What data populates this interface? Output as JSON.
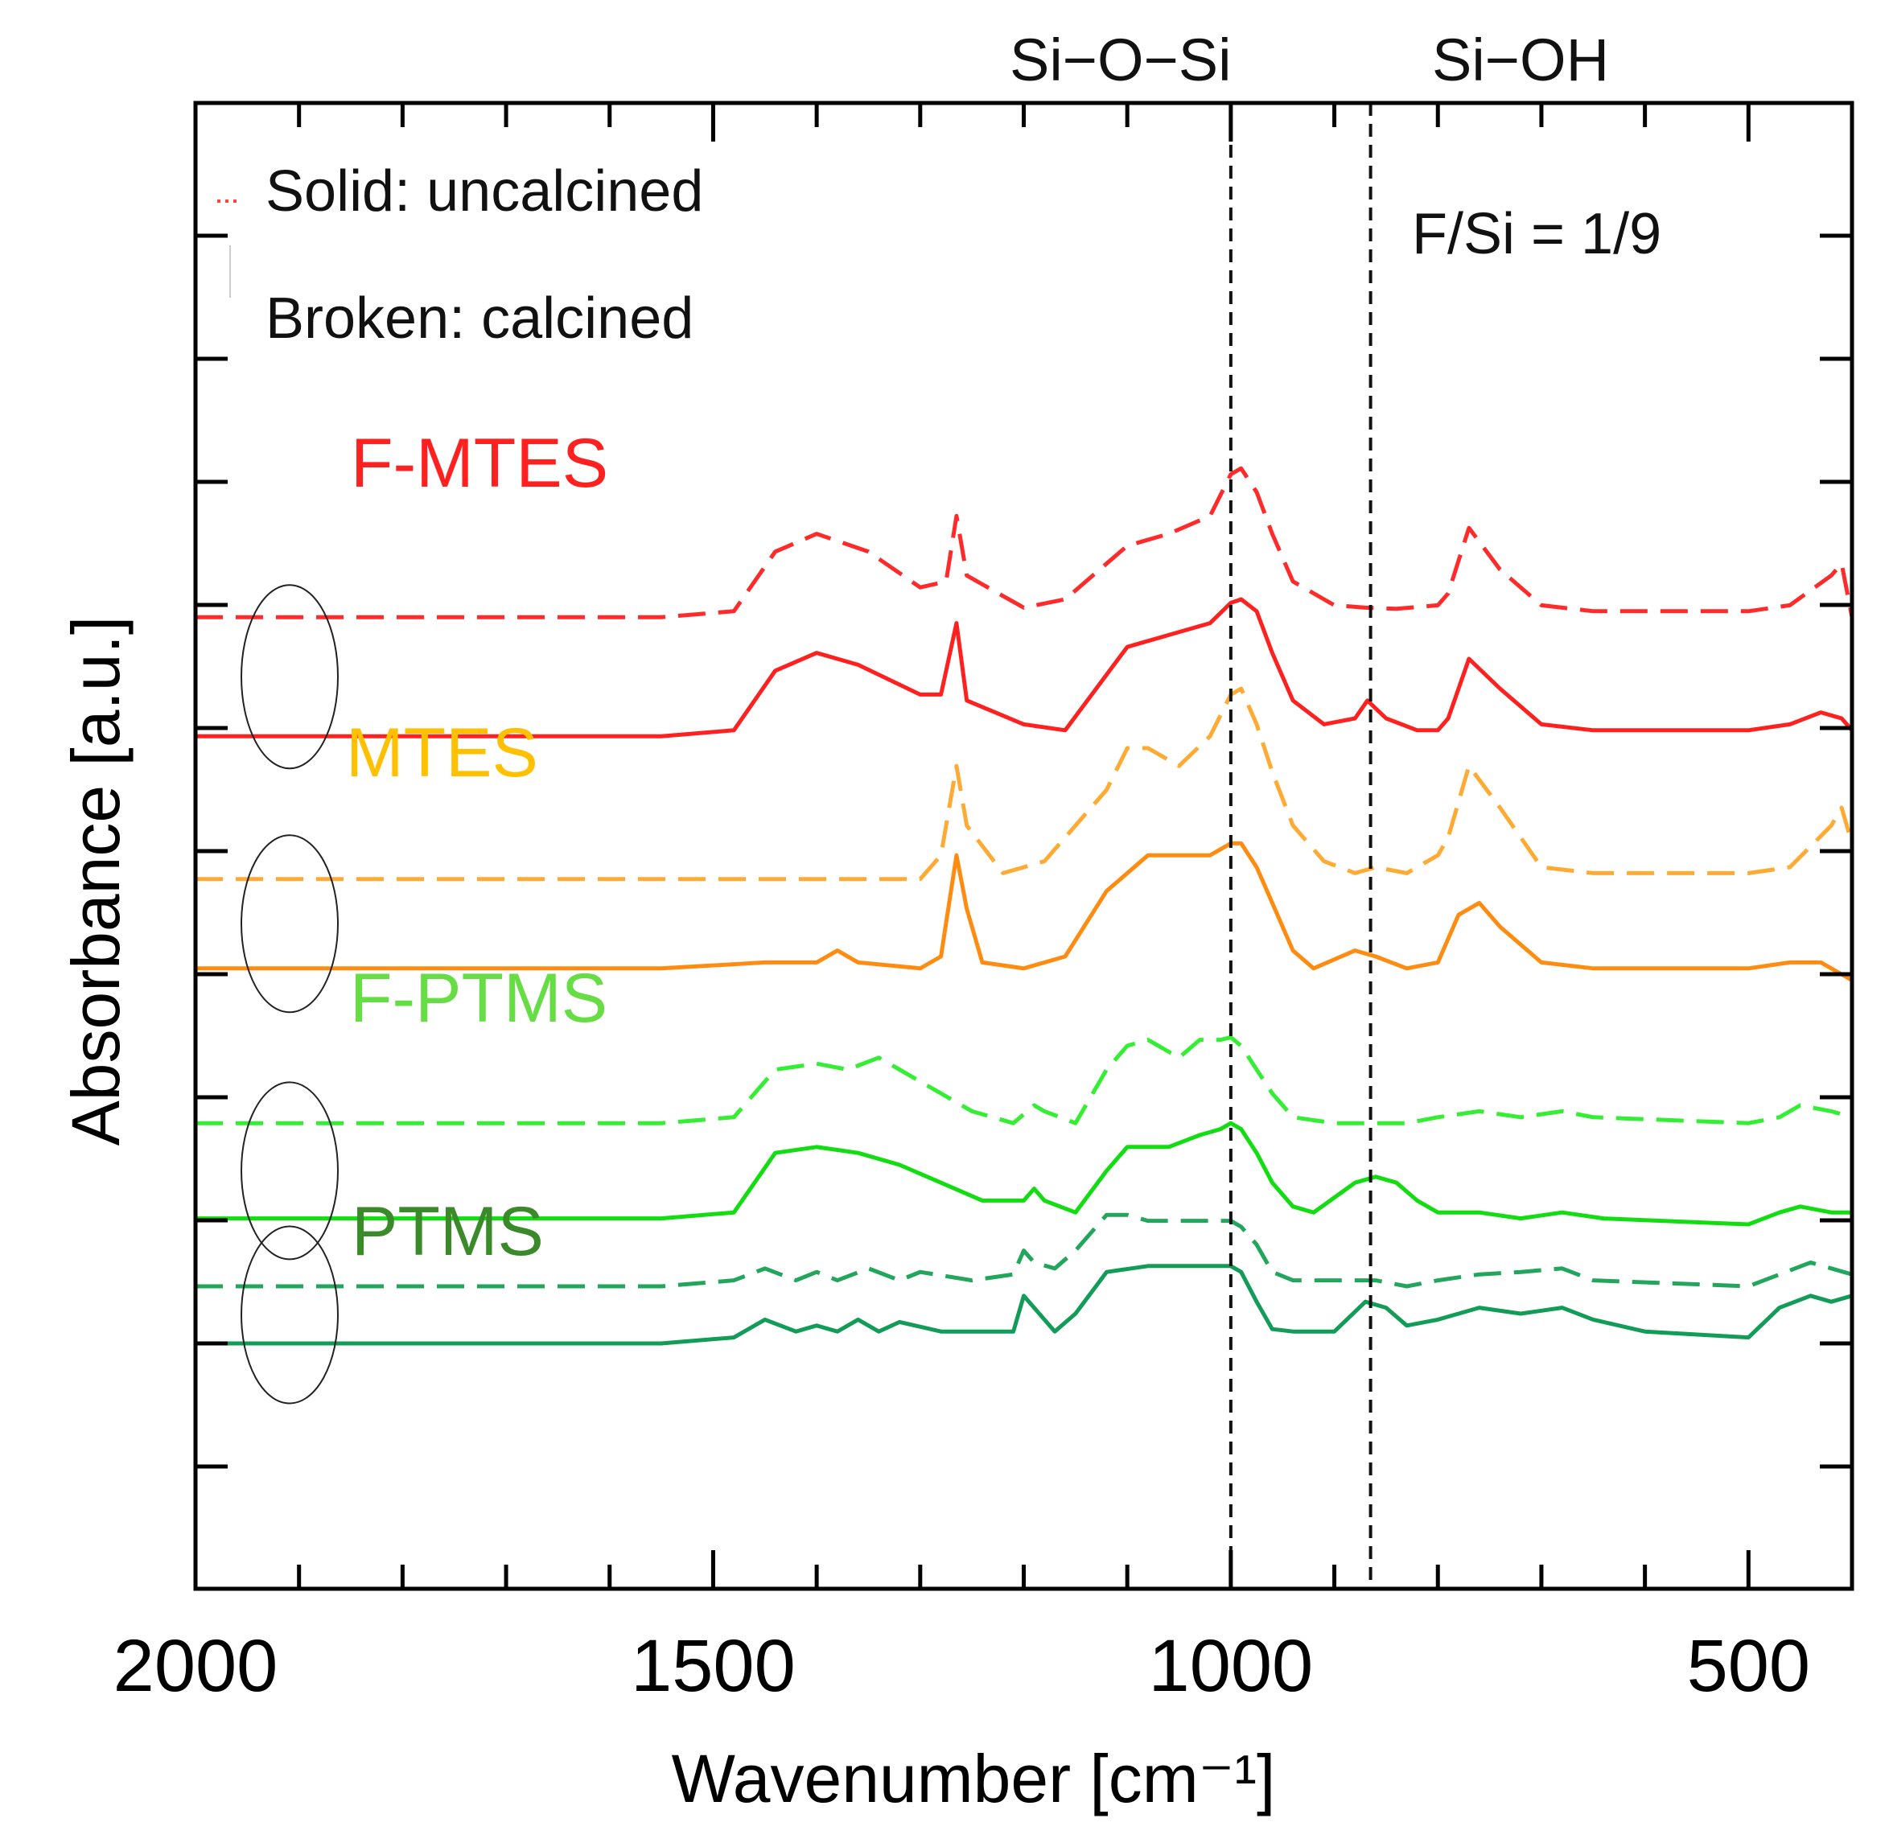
{
  "chart_data": {
    "type": "line",
    "title": "",
    "xlabel": "Wavenumber [cm⁻¹]",
    "ylabel": "Absorbance [a.u.]",
    "xlim": [
      2000,
      400
    ],
    "x_reversed": true,
    "y_ticks_labeled": false,
    "xticks": [
      {
        "value": 2000,
        "label": "2000"
      },
      {
        "value": 1500,
        "label": "1500"
      },
      {
        "value": 1000,
        "label": "1000"
      },
      {
        "value": 500,
        "label": "500"
      }
    ],
    "grid": false,
    "legend_text": [
      "Solid: uncalcined",
      "Broken: calcined"
    ],
    "annotations": {
      "ratio": "F/Si = 1/9",
      "bands": [
        {
          "label": "Si−O−Si",
          "x": 1000
        },
        {
          "label": "Si−OH",
          "x": 865
        }
      ]
    },
    "series_labels": [
      {
        "text": "F-MTES",
        "color": "#ff2020"
      },
      {
        "text": "MTES",
        "color": "#ffc000"
      },
      {
        "text": "F-PTMS",
        "color": "#66dd44"
      },
      {
        "text": "PTMS",
        "color": "#3a8a2a"
      }
    ],
    "series": [
      {
        "group": "F-MTES",
        "style": "dashed",
        "color": "#ff2a2a",
        "baseline": 6.1,
        "points": [
          [
            2000,
            0
          ],
          [
            1550,
            0
          ],
          [
            1480,
            0.05
          ],
          [
            1440,
            0.55
          ],
          [
            1400,
            0.7
          ],
          [
            1350,
            0.55
          ],
          [
            1300,
            0.25
          ],
          [
            1275,
            0.3
          ],
          [
            1265,
            0.85
          ],
          [
            1255,
            0.35
          ],
          [
            1200,
            0.08
          ],
          [
            1160,
            0.15
          ],
          [
            1100,
            0.6
          ],
          [
            1060,
            0.7
          ],
          [
            1020,
            0.85
          ],
          [
            1000,
            1.2
          ],
          [
            990,
            1.25
          ],
          [
            975,
            1.05
          ],
          [
            960,
            0.7
          ],
          [
            940,
            0.3
          ],
          [
            900,
            0.1
          ],
          [
            870,
            0.08
          ],
          [
            840,
            0.07
          ],
          [
            800,
            0.1
          ],
          [
            790,
            0.2
          ],
          [
            770,
            0.75
          ],
          [
            740,
            0.4
          ],
          [
            700,
            0.1
          ],
          [
            650,
            0.05
          ],
          [
            600,
            0.05
          ],
          [
            500,
            0.05
          ],
          [
            460,
            0.1
          ],
          [
            420,
            0.35
          ],
          [
            410,
            0.45
          ],
          [
            400,
            0.0
          ]
        ]
      },
      {
        "group": "F-MTES",
        "style": "solid",
        "color": "#ff2020",
        "baseline": 5.1,
        "points": [
          [
            2000,
            0
          ],
          [
            1550,
            0
          ],
          [
            1480,
            0.05
          ],
          [
            1440,
            0.55
          ],
          [
            1400,
            0.7
          ],
          [
            1360,
            0.6
          ],
          [
            1300,
            0.35
          ],
          [
            1280,
            0.35
          ],
          [
            1265,
            0.95
          ],
          [
            1255,
            0.3
          ],
          [
            1200,
            0.1
          ],
          [
            1160,
            0.05
          ],
          [
            1100,
            0.75
          ],
          [
            1060,
            0.85
          ],
          [
            1020,
            0.95
          ],
          [
            1000,
            1.12
          ],
          [
            990,
            1.15
          ],
          [
            975,
            1.05
          ],
          [
            960,
            0.7
          ],
          [
            940,
            0.3
          ],
          [
            910,
            0.1
          ],
          [
            880,
            0.15
          ],
          [
            868,
            0.3
          ],
          [
            850,
            0.15
          ],
          [
            820,
            0.05
          ],
          [
            800,
            0.05
          ],
          [
            790,
            0.15
          ],
          [
            770,
            0.65
          ],
          [
            740,
            0.4
          ],
          [
            700,
            0.1
          ],
          [
            650,
            0.05
          ],
          [
            600,
            0.05
          ],
          [
            500,
            0.05
          ],
          [
            460,
            0.1
          ],
          [
            430,
            0.2
          ],
          [
            410,
            0.15
          ],
          [
            400,
            0.05
          ]
        ]
      },
      {
        "group": "MTES",
        "style": "dashed",
        "color": "#ffaa33",
        "baseline": 3.9,
        "points": [
          [
            2000,
            0
          ],
          [
            1300,
            0
          ],
          [
            1280,
            0.2
          ],
          [
            1265,
            0.95
          ],
          [
            1255,
            0.45
          ],
          [
            1220,
            0.05
          ],
          [
            1180,
            0.15
          ],
          [
            1120,
            0.75
          ],
          [
            1100,
            1.1
          ],
          [
            1080,
            1.1
          ],
          [
            1050,
            0.95
          ],
          [
            1020,
            1.2
          ],
          [
            1000,
            1.55
          ],
          [
            990,
            1.6
          ],
          [
            975,
            1.3
          ],
          [
            960,
            0.9
          ],
          [
            940,
            0.45
          ],
          [
            910,
            0.15
          ],
          [
            880,
            0.05
          ],
          [
            860,
            0.1
          ],
          [
            830,
            0.05
          ],
          [
            800,
            0.2
          ],
          [
            790,
            0.35
          ],
          [
            770,
            0.95
          ],
          [
            740,
            0.6
          ],
          [
            700,
            0.1
          ],
          [
            650,
            0.05
          ],
          [
            500,
            0.05
          ],
          [
            460,
            0.1
          ],
          [
            420,
            0.45
          ],
          [
            410,
            0.6
          ],
          [
            400,
            0.3
          ]
        ]
      },
      {
        "group": "MTES",
        "style": "solid",
        "color": "#ff8c10",
        "baseline": 3.15,
        "points": [
          [
            2000,
            0
          ],
          [
            1550,
            0
          ],
          [
            1450,
            0.05
          ],
          [
            1400,
            0.05
          ],
          [
            1380,
            0.15
          ],
          [
            1360,
            0.05
          ],
          [
            1300,
            0.0
          ],
          [
            1280,
            0.1
          ],
          [
            1265,
            0.95
          ],
          [
            1255,
            0.5
          ],
          [
            1240,
            0.05
          ],
          [
            1200,
            0.0
          ],
          [
            1160,
            0.1
          ],
          [
            1120,
            0.65
          ],
          [
            1080,
            0.95
          ],
          [
            1040,
            0.95
          ],
          [
            1020,
            0.95
          ],
          [
            1000,
            1.05
          ],
          [
            990,
            1.05
          ],
          [
            975,
            0.85
          ],
          [
            960,
            0.55
          ],
          [
            940,
            0.15
          ],
          [
            920,
            0.0
          ],
          [
            880,
            0.15
          ],
          [
            860,
            0.1
          ],
          [
            830,
            0.0
          ],
          [
            800,
            0.05
          ],
          [
            780,
            0.45
          ],
          [
            760,
            0.55
          ],
          [
            740,
            0.35
          ],
          [
            700,
            0.05
          ],
          [
            650,
            0.0
          ],
          [
            500,
            0.0
          ],
          [
            460,
            0.05
          ],
          [
            430,
            0.05
          ],
          [
            400,
            -0.1
          ]
        ]
      },
      {
        "group": "F-PTMS",
        "style": "dashed",
        "color": "#33ee33",
        "baseline": 1.85,
        "points": [
          [
            2000,
            0
          ],
          [
            1550,
            0
          ],
          [
            1480,
            0.05
          ],
          [
            1440,
            0.45
          ],
          [
            1400,
            0.5
          ],
          [
            1370,
            0.45
          ],
          [
            1340,
            0.55
          ],
          [
            1300,
            0.35
          ],
          [
            1250,
            0.1
          ],
          [
            1210,
            0.0
          ],
          [
            1190,
            0.15
          ],
          [
            1180,
            0.1
          ],
          [
            1150,
            0.0
          ],
          [
            1120,
            0.45
          ],
          [
            1100,
            0.65
          ],
          [
            1080,
            0.7
          ],
          [
            1050,
            0.55
          ],
          [
            1030,
            0.7
          ],
          [
            1010,
            0.7
          ],
          [
            1000,
            0.72
          ],
          [
            990,
            0.65
          ],
          [
            975,
            0.45
          ],
          [
            960,
            0.25
          ],
          [
            940,
            0.05
          ],
          [
            900,
            0.0
          ],
          [
            860,
            0.0
          ],
          [
            830,
            0.0
          ],
          [
            800,
            0.05
          ],
          [
            760,
            0.1
          ],
          [
            720,
            0.05
          ],
          [
            680,
            0.1
          ],
          [
            650,
            0.05
          ],
          [
            500,
            0.0
          ],
          [
            470,
            0.05
          ],
          [
            450,
            0.15
          ],
          [
            420,
            0.1
          ],
          [
            400,
            0.05
          ]
        ]
      },
      {
        "group": "F-PTMS",
        "style": "solid",
        "color": "#11dd11",
        "baseline": 1.05,
        "points": [
          [
            2000,
            0
          ],
          [
            1550,
            0
          ],
          [
            1480,
            0.05
          ],
          [
            1440,
            0.55
          ],
          [
            1400,
            0.6
          ],
          [
            1360,
            0.55
          ],
          [
            1320,
            0.45
          ],
          [
            1280,
            0.3
          ],
          [
            1240,
            0.15
          ],
          [
            1200,
            0.15
          ],
          [
            1190,
            0.25
          ],
          [
            1180,
            0.15
          ],
          [
            1150,
            0.05
          ],
          [
            1120,
            0.4
          ],
          [
            1100,
            0.6
          ],
          [
            1060,
            0.6
          ],
          [
            1030,
            0.7
          ],
          [
            1010,
            0.75
          ],
          [
            1000,
            0.8
          ],
          [
            990,
            0.75
          ],
          [
            975,
            0.55
          ],
          [
            960,
            0.3
          ],
          [
            940,
            0.1
          ],
          [
            920,
            0.05
          ],
          [
            880,
            0.3
          ],
          [
            860,
            0.35
          ],
          [
            840,
            0.3
          ],
          [
            820,
            0.15
          ],
          [
            800,
            0.05
          ],
          [
            760,
            0.05
          ],
          [
            720,
            0.0
          ],
          [
            680,
            0.05
          ],
          [
            640,
            0.0
          ],
          [
            500,
            -0.05
          ],
          [
            470,
            0.05
          ],
          [
            450,
            0.1
          ],
          [
            420,
            0.05
          ],
          [
            400,
            0.05
          ]
        ]
      },
      {
        "group": "PTMS",
        "style": "dashed",
        "color": "#21a65c",
        "baseline": 0.48,
        "points": [
          [
            2000,
            0
          ],
          [
            1550,
            0
          ],
          [
            1480,
            0.05
          ],
          [
            1450,
            0.15
          ],
          [
            1420,
            0.05
          ],
          [
            1400,
            0.12
          ],
          [
            1380,
            0.05
          ],
          [
            1350,
            0.15
          ],
          [
            1320,
            0.05
          ],
          [
            1300,
            0.12
          ],
          [
            1250,
            0.05
          ],
          [
            1210,
            0.1
          ],
          [
            1200,
            0.3
          ],
          [
            1190,
            0.2
          ],
          [
            1170,
            0.15
          ],
          [
            1150,
            0.3
          ],
          [
            1120,
            0.6
          ],
          [
            1100,
            0.6
          ],
          [
            1080,
            0.55
          ],
          [
            1050,
            0.55
          ],
          [
            1030,
            0.55
          ],
          [
            1010,
            0.55
          ],
          [
            1000,
            0.55
          ],
          [
            990,
            0.5
          ],
          [
            975,
            0.35
          ],
          [
            960,
            0.12
          ],
          [
            940,
            0.05
          ],
          [
            900,
            0.05
          ],
          [
            860,
            0.05
          ],
          [
            830,
            0.0
          ],
          [
            800,
            0.05
          ],
          [
            760,
            0.1
          ],
          [
            720,
            0.12
          ],
          [
            680,
            0.15
          ],
          [
            650,
            0.05
          ],
          [
            500,
            0.0
          ],
          [
            470,
            0.1
          ],
          [
            440,
            0.2
          ],
          [
            420,
            0.15
          ],
          [
            400,
            0.1
          ]
        ]
      },
      {
        "group": "PTMS",
        "style": "solid",
        "color": "#119c58",
        "baseline": 0.0,
        "points": [
          [
            2000,
            0
          ],
          [
            1550,
            0
          ],
          [
            1480,
            0.05
          ],
          [
            1450,
            0.2
          ],
          [
            1420,
            0.1
          ],
          [
            1400,
            0.15
          ],
          [
            1380,
            0.1
          ],
          [
            1360,
            0.2
          ],
          [
            1340,
            0.1
          ],
          [
            1320,
            0.18
          ],
          [
            1280,
            0.1
          ],
          [
            1250,
            0.1
          ],
          [
            1210,
            0.1
          ],
          [
            1200,
            0.4
          ],
          [
            1190,
            0.3
          ],
          [
            1170,
            0.1
          ],
          [
            1150,
            0.25
          ],
          [
            1120,
            0.6
          ],
          [
            1080,
            0.65
          ],
          [
            1040,
            0.65
          ],
          [
            1020,
            0.65
          ],
          [
            1000,
            0.65
          ],
          [
            990,
            0.6
          ],
          [
            975,
            0.35
          ],
          [
            960,
            0.12
          ],
          [
            940,
            0.1
          ],
          [
            900,
            0.1
          ],
          [
            870,
            0.35
          ],
          [
            850,
            0.3
          ],
          [
            830,
            0.15
          ],
          [
            800,
            0.2
          ],
          [
            760,
            0.3
          ],
          [
            720,
            0.25
          ],
          [
            680,
            0.3
          ],
          [
            650,
            0.2
          ],
          [
            600,
            0.1
          ],
          [
            500,
            0.05
          ],
          [
            470,
            0.3
          ],
          [
            440,
            0.4
          ],
          [
            420,
            0.35
          ],
          [
            400,
            0.4
          ]
        ]
      }
    ]
  }
}
